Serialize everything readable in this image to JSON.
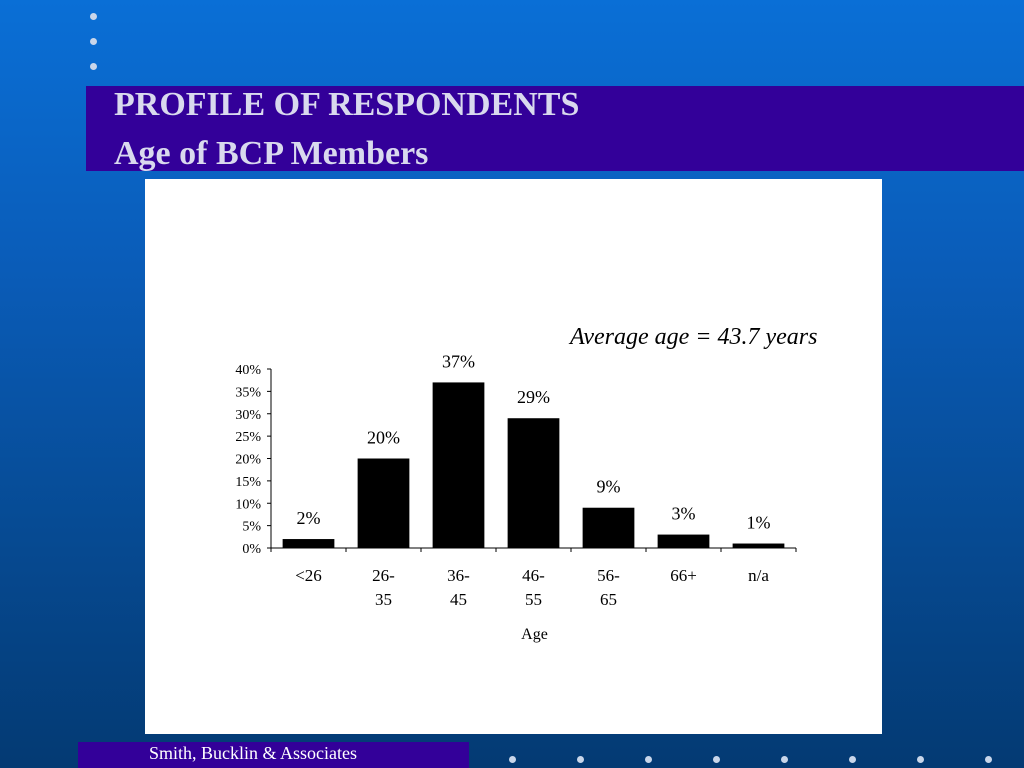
{
  "slide": {
    "title_line1": "PROFILE OF RESPONDENTS",
    "title_line2": "Age of BCP Members",
    "footer": "Smith, Bucklin & Associates",
    "accent_color": "#330099",
    "bar_color": "#000000"
  },
  "chart_data": {
    "type": "bar",
    "annotation": "Average age = 43.7 years",
    "categories": [
      [
        "<26"
      ],
      [
        "26-",
        "35"
      ],
      [
        "36-",
        "45"
      ],
      [
        "46-",
        "55"
      ],
      [
        "56-",
        "65"
      ],
      [
        "66+"
      ],
      [
        "n/a"
      ]
    ],
    "values": [
      2,
      20,
      37,
      29,
      9,
      3,
      1
    ],
    "value_labels": [
      "2%",
      "20%",
      "37%",
      "29%",
      "9%",
      "3%",
      "1%"
    ],
    "xlabel": "Age",
    "ylabel": "",
    "ylim": [
      0,
      40
    ],
    "yticks": [
      "0%",
      "5%",
      "10%",
      "15%",
      "20%",
      "25%",
      "30%",
      "35%",
      "40%"
    ],
    "grid": false,
    "legend": "none"
  }
}
